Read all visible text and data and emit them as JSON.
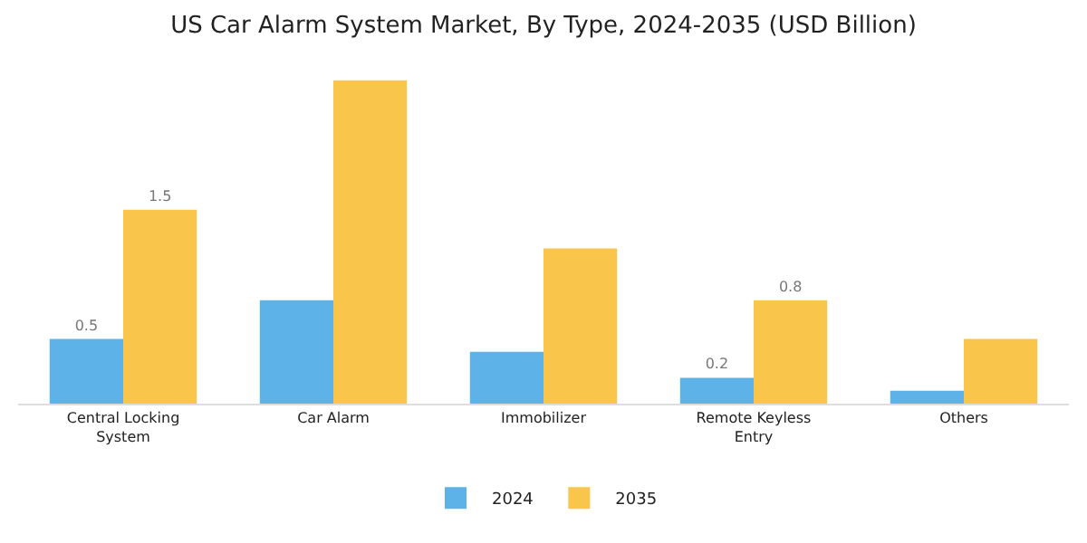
{
  "chart_data": {
    "type": "bar",
    "title": "US Car Alarm System Market, By Type, 2024-2035 (USD Billion)",
    "categories": [
      "Central Locking System",
      "Car Alarm",
      "Immobilizer",
      "Remote Keyless Entry",
      "Others"
    ],
    "series": [
      {
        "name": "2024",
        "color": "#5db3e8",
        "values": [
          0.5,
          0.8,
          0.4,
          0.2,
          0.1
        ],
        "value_labels": [
          "0.5",
          null,
          null,
          "0.2",
          null
        ]
      },
      {
        "name": "2035",
        "color": "#f9c54b",
        "values": [
          1.5,
          2.5,
          1.2,
          0.8,
          0.5
        ],
        "value_labels": [
          "1.5",
          null,
          null,
          "0.8",
          null
        ]
      }
    ],
    "legend": "bottom"
  }
}
